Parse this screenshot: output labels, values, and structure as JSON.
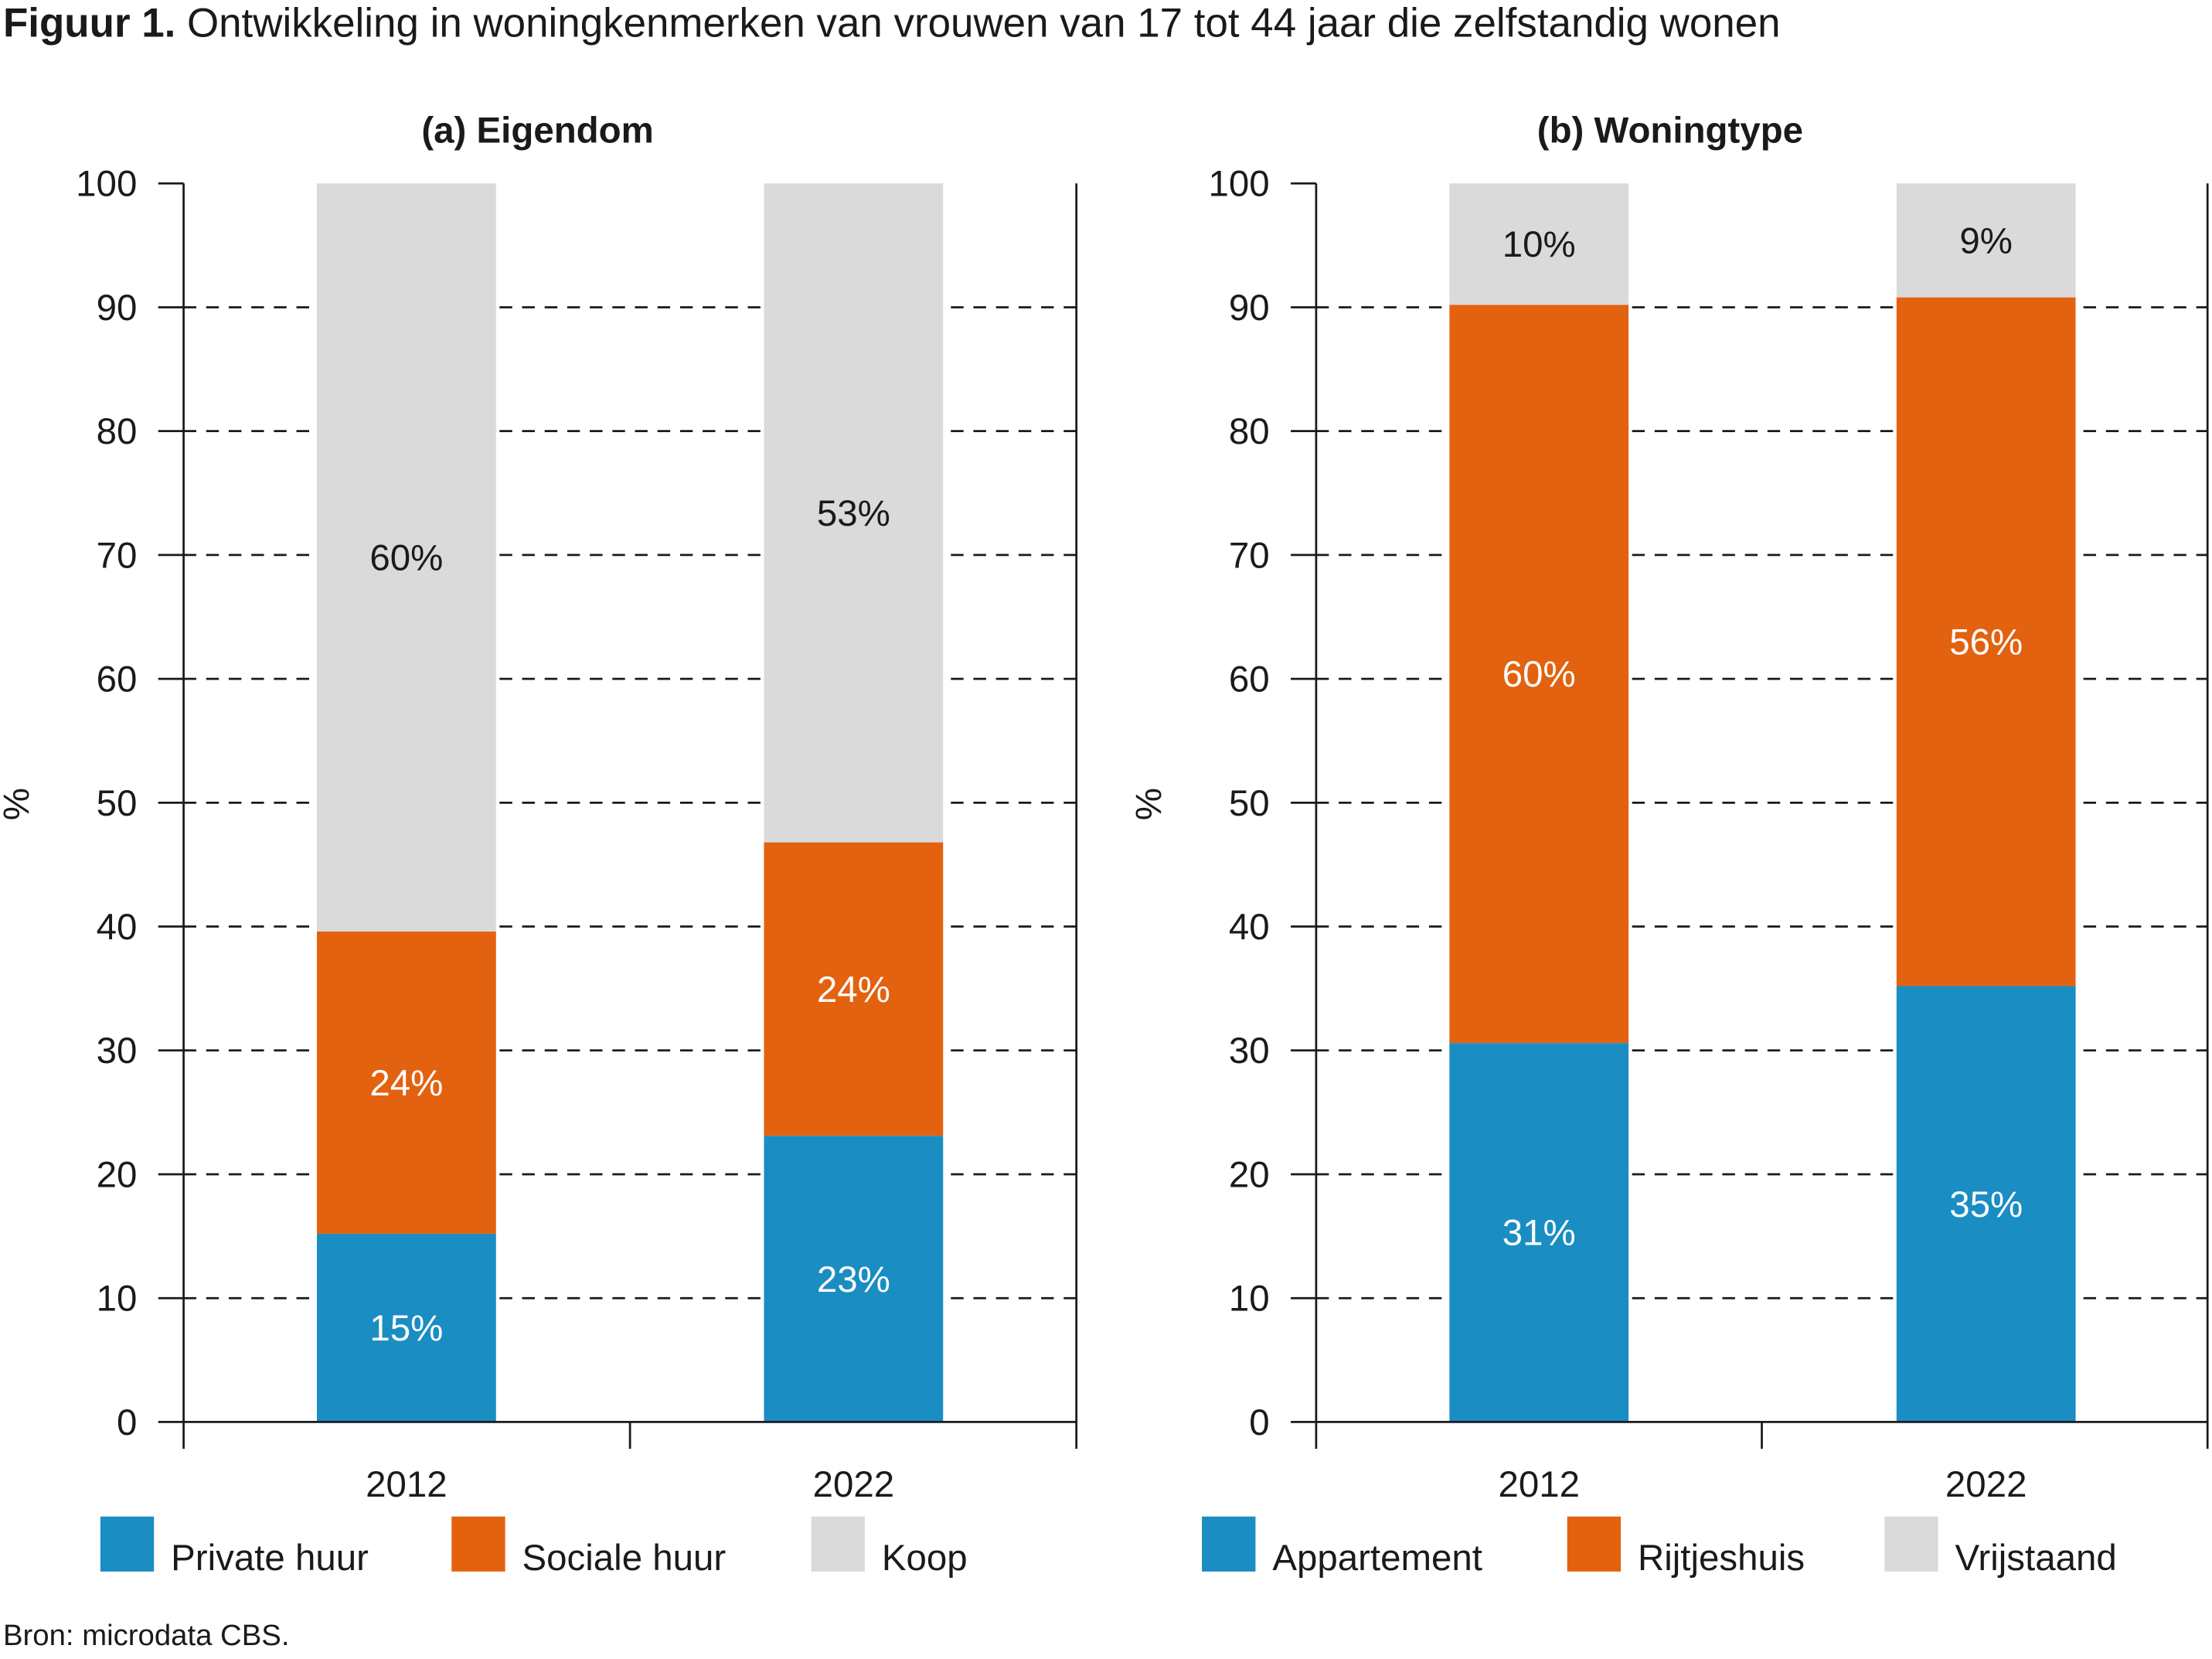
{
  "figure": {
    "title_prefix": "Figuur 1.",
    "title": "Ontwikkeling in woningkenmerken van vrouwen van 17 tot 44 jaar die zelfstandig wonen",
    "source": "Bron: microdata CBS."
  },
  "chart_data": [
    {
      "type": "bar",
      "stacked": true,
      "title": "(a) Eigendom",
      "ylabel": "%",
      "xlabel": "",
      "ylim": [
        0,
        100
      ],
      "yticks": [
        0,
        10,
        20,
        30,
        40,
        50,
        60,
        70,
        80,
        90,
        100
      ],
      "grid": true,
      "legend": "bottom",
      "categories": [
        "2012",
        "2022"
      ],
      "series": [
        {
          "name": "Private huur",
          "color": "#1a8dc3",
          "values": [
            15.2,
            23.1
          ],
          "labels": [
            "15%",
            "23%"
          ],
          "label_color": "#ffffff"
        },
        {
          "name": "Sociale huur",
          "color": "#e3620f",
          "values": [
            24.4,
            23.7
          ],
          "labels": [
            "24%",
            "24%"
          ],
          "label_color": "#ffffff"
        },
        {
          "name": "Koop",
          "color": "#dadada",
          "values": [
            60.4,
            53.2
          ],
          "labels": [
            "60%",
            "53%"
          ],
          "label_color": "#1a1a1a"
        }
      ]
    },
    {
      "type": "bar",
      "stacked": true,
      "title": "(b) Woningtype",
      "ylabel": "%",
      "xlabel": "",
      "ylim": [
        0,
        100
      ],
      "yticks": [
        0,
        10,
        20,
        30,
        40,
        50,
        60,
        70,
        80,
        90,
        100
      ],
      "grid": true,
      "legend": "bottom",
      "categories": [
        "2012",
        "2022"
      ],
      "series": [
        {
          "name": "Appartement",
          "color": "#1a8dc3",
          "values": [
            30.6,
            35.2
          ],
          "labels": [
            "31%",
            "35%"
          ],
          "label_color": "#ffffff"
        },
        {
          "name": "Rijtjeshuis",
          "color": "#e3620f",
          "values": [
            59.6,
            55.6
          ],
          "labels": [
            "60%",
            "56%"
          ],
          "label_color": "#ffffff"
        },
        {
          "name": "Vrijstaand",
          "color": "#dadada",
          "values": [
            9.8,
            9.2
          ],
          "labels": [
            "10%",
            "9%"
          ],
          "label_color": "#1a1a1a"
        }
      ]
    }
  ]
}
